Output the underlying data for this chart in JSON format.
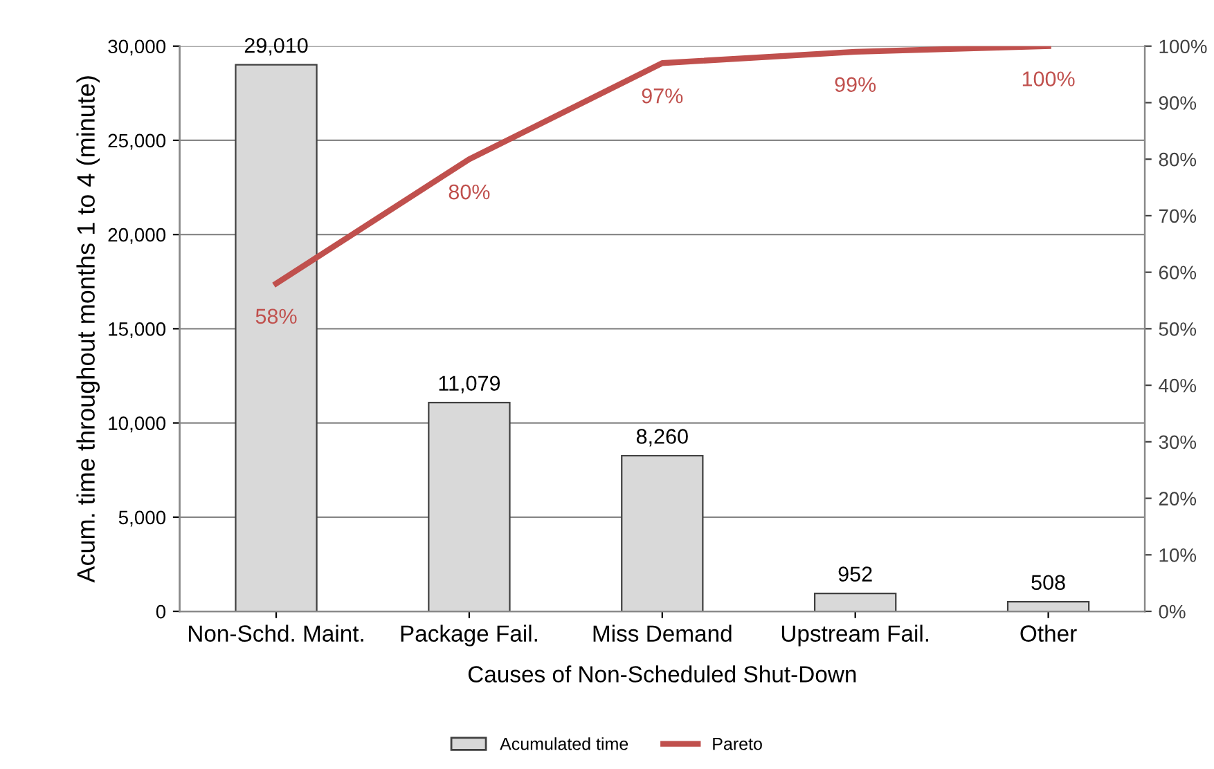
{
  "chart_data": {
    "type": "bar",
    "xlabel": "Causes of Non-Scheduled Shut-Down",
    "ylabel": "Acum. time throughout months 1 to 4 (minute)",
    "categories": [
      "Non-Schd. Maint.",
      "Package Fail.",
      "Miss Demand",
      "Upstream Fail.",
      "Other"
    ],
    "series": [
      {
        "name": "Acumulated time",
        "color": "#d9d9d9",
        "values": [
          29010,
          11079,
          8260,
          952,
          508
        ],
        "value_labels": [
          "29,010",
          "11,079",
          "8,260",
          "952",
          "508"
        ]
      },
      {
        "name": "Pareto",
        "type": "line",
        "axis": "y2",
        "color": "#c0504d",
        "values": [
          58,
          80,
          97,
          99,
          100
        ],
        "value_labels": [
          "58%",
          "80%",
          "97%",
          "99%",
          "100%"
        ]
      }
    ],
    "ylim": [
      0,
      30000
    ],
    "yticks": [
      0,
      {
        "value": 5000,
        "label": "5,000"
      },
      {
        "value": 10000,
        "label": "10,000"
      },
      {
        "value": 15000,
        "label": "15,000"
      },
      {
        "value": 20000,
        "label": "20,000"
      },
      {
        "value": 25000,
        "label": "25,000"
      },
      {
        "value": 30000,
        "label": "30,000"
      }
    ],
    "y2lim": [
      0,
      100
    ],
    "y2ticks": [
      {
        "value": 0,
        "label": "0%"
      },
      {
        "value": 10,
        "label": "10%"
      },
      {
        "value": 20,
        "label": "20%"
      },
      {
        "value": 30,
        "label": "30%"
      },
      {
        "value": 40,
        "label": "40%"
      },
      {
        "value": 50,
        "label": "50%"
      },
      {
        "value": 60,
        "label": "60%"
      },
      {
        "value": 70,
        "label": "70%"
      },
      {
        "value": 80,
        "label": "80%"
      },
      {
        "value": 90,
        "label": "90%"
      },
      {
        "value": 100,
        "label": "100%"
      }
    ],
    "grid": "y",
    "legend": "bottom",
    "marker": "none",
    "line_style": "solid"
  }
}
